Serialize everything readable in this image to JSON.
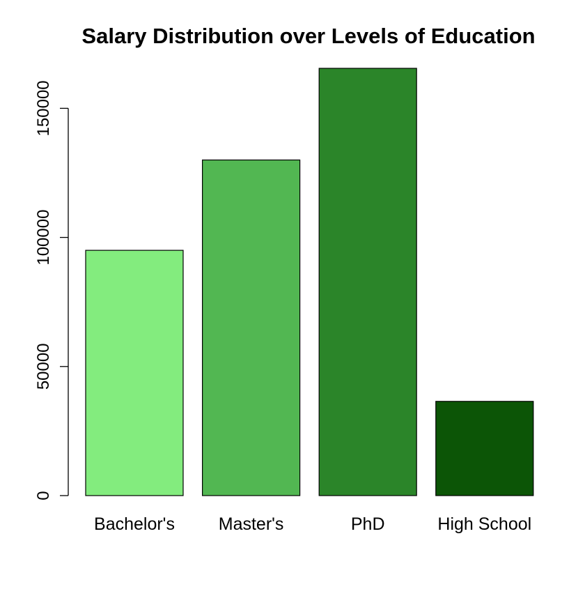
{
  "chart_data": {
    "type": "bar",
    "title": "Salary Distribution over Levels of Education",
    "xlabel": "",
    "ylabel": "",
    "categories": [
      "Bachelor's",
      "Master's",
      "PhD",
      "High School"
    ],
    "values": [
      95000,
      130000,
      165500,
      36500
    ],
    "colors": [
      "#83ec7e",
      "#52b752",
      "#2b8529",
      "#0c5506"
    ],
    "ylim": [
      0,
      165500
    ],
    "yticks": [
      0,
      50000,
      100000,
      150000
    ],
    "ytick_labels": [
      "0",
      "50000",
      "100000",
      "150000"
    ],
    "grid": false,
    "legend": "none"
  }
}
